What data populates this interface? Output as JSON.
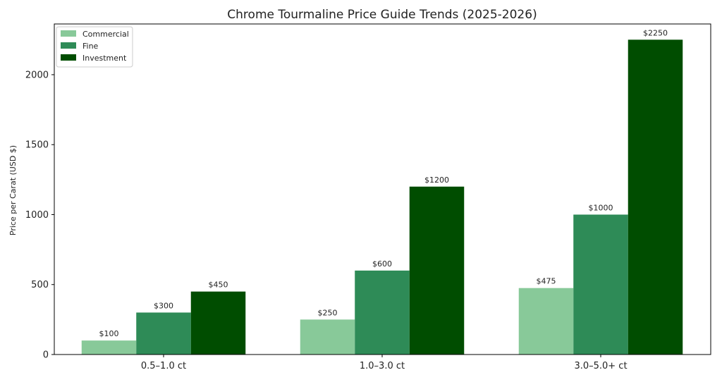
{
  "chart_data": {
    "type": "bar",
    "title": "Chrome Tourmaline Price Guide Trends (2025-2026)",
    "xlabel": "",
    "ylabel": "Price per Carat (USD $)",
    "categories": [
      "0.5–1.0 ct",
      "1.0–3.0 ct",
      "3.0–5.0+ ct"
    ],
    "series": [
      {
        "name": "Commercial",
        "values": [
          100,
          250,
          475
        ],
        "labels": [
          "$100",
          "$250",
          "$475"
        ],
        "color": "#88c999"
      },
      {
        "name": "Fine",
        "values": [
          300,
          600,
          1000
        ],
        "labels": [
          "$300",
          "$600",
          "$1000"
        ],
        "color": "#2e8b57"
      },
      {
        "name": "Investment",
        "values": [
          450,
          1200,
          2250
        ],
        "labels": [
          "$450",
          "$1200",
          "$2250"
        ],
        "color": "#004d00"
      }
    ],
    "ylim": [
      0,
      2362.5
    ],
    "yticks": [
      0,
      500,
      1000,
      1500,
      2000
    ],
    "legend_position": "top-left",
    "grid": false
  }
}
